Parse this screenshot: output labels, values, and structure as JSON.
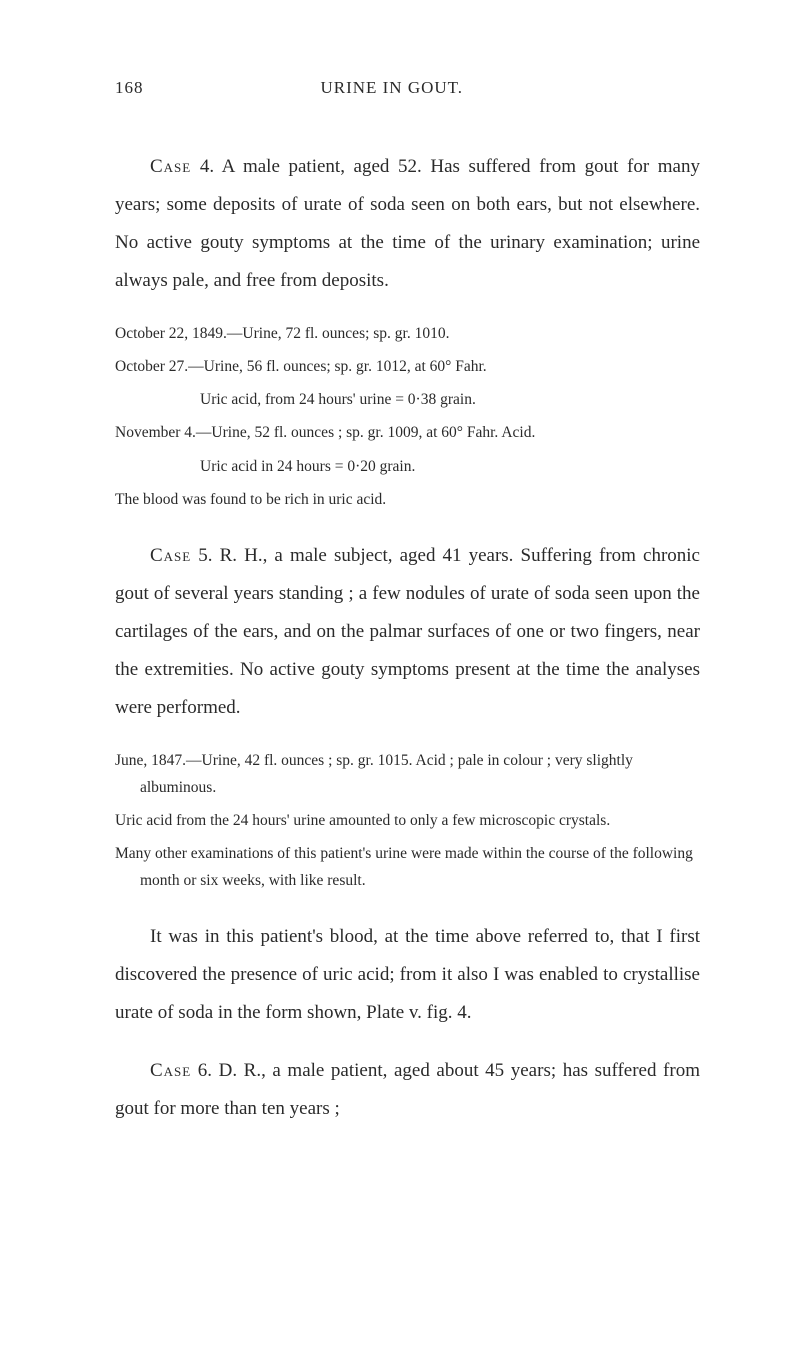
{
  "header": {
    "pageNumber": "168",
    "runningTitle": "URINE IN GOUT."
  },
  "case4": {
    "intro": "Case 4. A male patient, aged 52. Has suffered from gout for many years; some deposits of urate of soda seen on both ears, but not elsewhere. No active gouty symptoms at the time of the urinary examination; urine always pale, and free from deposits.",
    "detail1": "October 22, 1849.—Urine, 72 fl. ounces; sp. gr. 1010.",
    "detail2": "October 27.—Urine, 56 fl. ounces; sp. gr. 1012, at 60° Fahr.",
    "detail2b": "Uric acid, from 24 hours' urine = 0·38 grain.",
    "detail3": "November 4.—Urine, 52 fl. ounces ; sp. gr. 1009, at 60° Fahr. Acid.",
    "detail3b": "Uric acid in 24 hours = 0·20 grain.",
    "detail4": "The blood was found to be rich in uric acid."
  },
  "case5": {
    "intro": "Case 5. R. H., a male subject, aged 41 years. Suffering from chronic gout of several years standing ; a few nodules of urate of soda seen upon the cartilages of the ears, and on the palmar surfaces of one or two fingers, near the extremities. No active gouty symptoms present at the time the analyses were performed.",
    "detail1": "June, 1847.—Urine, 42 fl. ounces ; sp. gr. 1015. Acid ; pale in colour ; very slightly albuminous.",
    "detail2": "Uric acid from the 24 hours' urine amounted to only a few microscopic crystals.",
    "detail3": "Many other examinations of this patient's urine were made within the course of the following month or six weeks, with like result.",
    "bodyPara": "It was in this patient's blood, at the time above referred to, that I first discovered the presence of uric acid; from it also I was enabled to crystallise urate of soda in the form shown, Plate v. fig. 4."
  },
  "case6": {
    "intro": "Case 6. D. R., a male patient, aged about 45 years; has suffered from gout for more than ten years ;"
  }
}
